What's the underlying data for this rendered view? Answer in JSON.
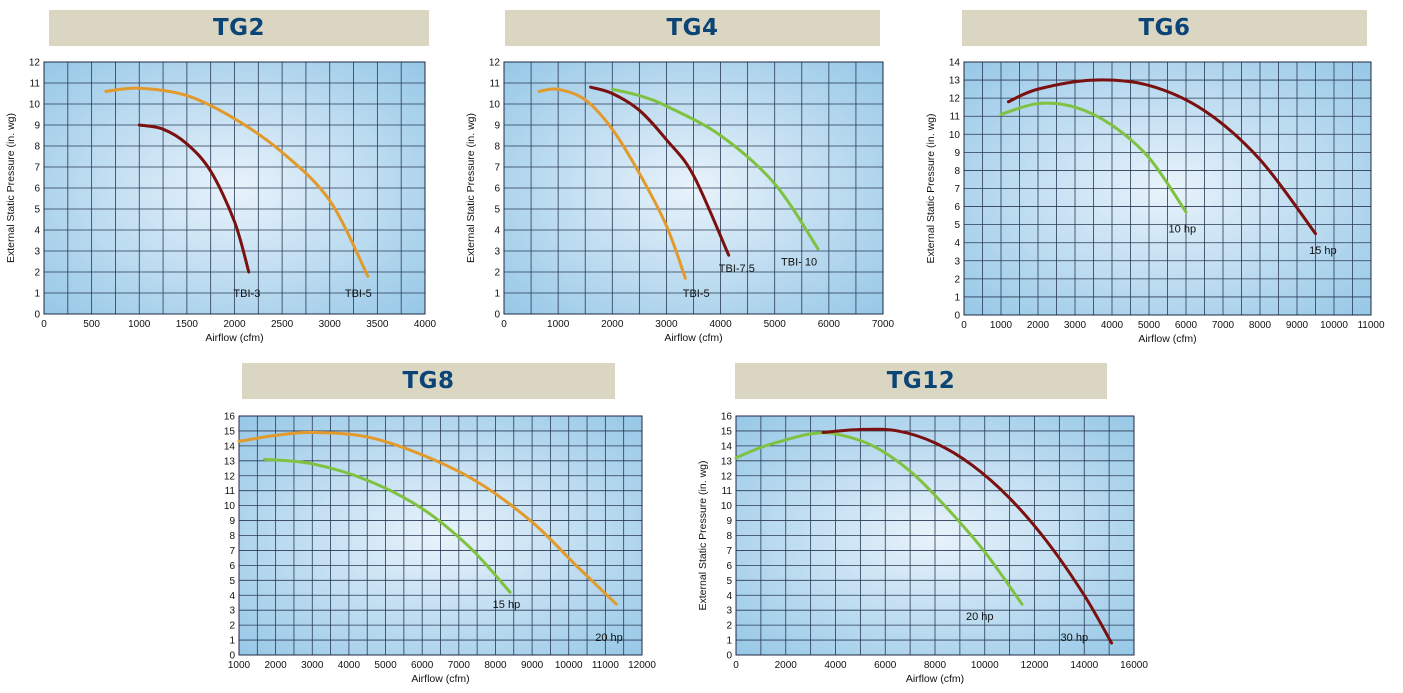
{
  "chart_data": [
    {
      "id": "tg2",
      "type": "line",
      "title": "TG2",
      "xlabel": "Airflow (cfm)",
      "ylabel": "External Static Pressure (in. wg)",
      "xlim": [
        0,
        4000
      ],
      "ylim": [
        0,
        12
      ],
      "x_ticks": [
        0,
        500,
        1000,
        1500,
        2000,
        2500,
        3000,
        3500,
        4000
      ],
      "y_ticks": [
        0,
        1,
        2,
        3,
        4,
        5,
        6,
        7,
        8,
        9,
        10,
        11,
        12
      ],
      "grid": true,
      "series": [
        {
          "label": "TBI-3",
          "color": "#7a1010",
          "points": [
            [
              1000,
              9.0
            ],
            [
              1250,
              8.8
            ],
            [
              1500,
              8.1
            ],
            [
              1750,
              6.8
            ],
            [
              2000,
              4.4
            ],
            [
              2150,
              2.0
            ]
          ],
          "label_at": [
            2130,
            1.0
          ]
        },
        {
          "label": "TBI-5",
          "color": "#e19a2b",
          "points": [
            [
              650,
              10.6
            ],
            [
              1000,
              10.75
            ],
            [
              1500,
              10.4
            ],
            [
              2000,
              9.3
            ],
            [
              2500,
              7.7
            ],
            [
              3000,
              5.4
            ],
            [
              3400,
              1.8
            ]
          ],
          "label_at": [
            3300,
            1.0
          ]
        }
      ]
    },
    {
      "id": "tg4",
      "type": "line",
      "title": "TG4",
      "xlabel": "Airflow (cfm)",
      "ylabel": "External Static Pressure (in. wg)",
      "xlim": [
        0,
        7000
      ],
      "ylim": [
        0,
        12
      ],
      "x_ticks": [
        0,
        1000,
        2000,
        3000,
        4000,
        5000,
        6000,
        7000
      ],
      "y_ticks": [
        0,
        1,
        2,
        3,
        4,
        5,
        6,
        7,
        8,
        9,
        10,
        11,
        12
      ],
      "grid": true,
      "series": [
        {
          "label": "TBI-5",
          "color": "#e19a2b",
          "points": [
            [
              650,
              10.6
            ],
            [
              1000,
              10.7
            ],
            [
              1500,
              10.2
            ],
            [
              2000,
              8.8
            ],
            [
              2500,
              6.7
            ],
            [
              3000,
              4.2
            ],
            [
              3350,
              1.7
            ]
          ],
          "label_at": [
            3550,
            1.0
          ]
        },
        {
          "label": "TBI-7.5",
          "color": "#7a1010",
          "points": [
            [
              1600,
              10.8
            ],
            [
              2000,
              10.5
            ],
            [
              2500,
              9.7
            ],
            [
              3000,
              8.3
            ],
            [
              3500,
              6.6
            ],
            [
              4150,
              2.8
            ]
          ],
          "label_at": [
            4300,
            2.2
          ]
        },
        {
          "label": "TBI- 10",
          "color": "#7fc241",
          "points": [
            [
              2000,
              10.7
            ],
            [
              2500,
              10.4
            ],
            [
              3000,
              9.9
            ],
            [
              4000,
              8.5
            ],
            [
              5000,
              6.2
            ],
            [
              5800,
              3.1
            ]
          ],
          "label_at": [
            5450,
            2.5
          ]
        }
      ]
    },
    {
      "id": "tg6",
      "type": "line",
      "title": "TG6",
      "xlabel": "Airflow (cfm)",
      "ylabel": "External Static Pressure (in. wg)",
      "xlim": [
        0,
        11000
      ],
      "ylim": [
        0,
        14
      ],
      "x_ticks": [
        0,
        1000,
        2000,
        3000,
        4000,
        5000,
        6000,
        7000,
        8000,
        9000,
        10000,
        11000
      ],
      "y_ticks": [
        0,
        1,
        2,
        3,
        4,
        5,
        6,
        7,
        8,
        9,
        10,
        11,
        12,
        13,
        14
      ],
      "grid": true,
      "series": [
        {
          "label": "10 hp",
          "color": "#7fc241",
          "points": [
            [
              1000,
              11.1
            ],
            [
              2000,
              11.7
            ],
            [
              3000,
              11.5
            ],
            [
              4000,
              10.5
            ],
            [
              5000,
              8.7
            ],
            [
              6000,
              5.7
            ]
          ],
          "label_at": [
            5900,
            4.8
          ]
        },
        {
          "label": "15 hp",
          "color": "#7a1010",
          "points": [
            [
              1200,
              11.8
            ],
            [
              2000,
              12.5
            ],
            [
              3500,
              13.0
            ],
            [
              5000,
              12.7
            ],
            [
              6500,
              11.3
            ],
            [
              8000,
              8.6
            ],
            [
              9500,
              4.5
            ]
          ],
          "label_at": [
            9700,
            3.6
          ]
        }
      ]
    },
    {
      "id": "tg8",
      "type": "line",
      "title": "TG8",
      "xlabel": "Airflow (cfm)",
      "ylabel": "",
      "xlim": [
        1000,
        12000
      ],
      "ylim": [
        0,
        16
      ],
      "x_ticks": [
        1000,
        2000,
        3000,
        4000,
        5000,
        6000,
        7000,
        8000,
        9000,
        10000,
        11000,
        12000
      ],
      "y_ticks": [
        0,
        1,
        2,
        3,
        4,
        5,
        6,
        7,
        8,
        9,
        10,
        11,
        12,
        13,
        14,
        15,
        16
      ],
      "grid": true,
      "series": [
        {
          "label": "15 hp",
          "color": "#7fc241",
          "points": [
            [
              1700,
              13.1
            ],
            [
              3000,
              12.8
            ],
            [
              4500,
              11.7
            ],
            [
              6000,
              9.8
            ],
            [
              7300,
              7.2
            ],
            [
              8400,
              4.2
            ]
          ],
          "label_at": [
            8300,
            3.4
          ]
        },
        {
          "label": "20 hp",
          "color": "#e19a2b",
          "points": [
            [
              1000,
              14.3
            ],
            [
              2000,
              14.7
            ],
            [
              3000,
              14.9
            ],
            [
              4500,
              14.6
            ],
            [
              6000,
              13.4
            ],
            [
              7500,
              11.6
            ],
            [
              9000,
              8.9
            ],
            [
              10200,
              6.0
            ],
            [
              11300,
              3.4
            ]
          ],
          "label_at": [
            11100,
            1.2
          ]
        }
      ]
    },
    {
      "id": "tg12",
      "type": "line",
      "title": "TG12",
      "xlabel": "Airflow (cfm)",
      "ylabel": "External Static Pressure (in. wg)",
      "xlim": [
        0,
        16000
      ],
      "ylim": [
        0,
        16
      ],
      "x_ticks": [
        0,
        2000,
        4000,
        6000,
        8000,
        10000,
        12000,
        14000,
        16000
      ],
      "y_ticks": [
        0,
        1,
        2,
        3,
        4,
        5,
        6,
        7,
        8,
        9,
        10,
        11,
        12,
        13,
        14,
        15,
        16
      ],
      "grid": true,
      "series": [
        {
          "label": "20 hp",
          "color": "#7fc241",
          "points": [
            [
              0,
              13.2
            ],
            [
              1000,
              13.9
            ],
            [
              2000,
              14.4
            ],
            [
              3000,
              14.8
            ],
            [
              4000,
              14.8
            ],
            [
              5500,
              14.0
            ],
            [
              7000,
              12.3
            ],
            [
              8500,
              9.8
            ],
            [
              10000,
              6.9
            ],
            [
              11500,
              3.4
            ]
          ],
          "label_at": [
            9800,
            2.6
          ]
        },
        {
          "label": "30 hp",
          "color": "#7a1010",
          "points": [
            [
              3500,
              14.9
            ],
            [
              5000,
              15.1
            ],
            [
              6500,
              15.0
            ],
            [
              8000,
              14.2
            ],
            [
              9500,
              12.7
            ],
            [
              11000,
              10.5
            ],
            [
              12500,
              7.6
            ],
            [
              14000,
              4.0
            ],
            [
              15100,
              0.8
            ]
          ],
          "label_at": [
            13600,
            1.2
          ]
        }
      ]
    }
  ]
}
